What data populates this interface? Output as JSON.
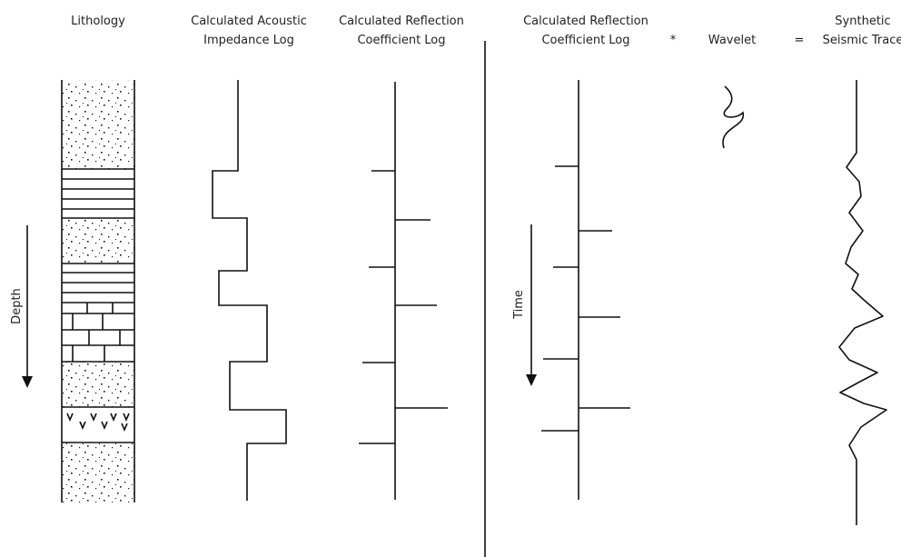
{
  "headers": {
    "lithology": "Lithology",
    "impedance": [
      "Calculated Acoustic",
      "Impedance Log"
    ],
    "reflection_depth": [
      "Calculated Reflection",
      "Coefficient Log"
    ],
    "reflection_time": [
      "Calculated Reflection",
      "Coefficient Log"
    ],
    "convolve": "*",
    "wavelet": "Wavelet",
    "equals": "=",
    "synthetic": [
      "Synthetic",
      "Seismic Trace"
    ]
  },
  "axes": {
    "depth": "Depth",
    "time": "Time"
  }
}
